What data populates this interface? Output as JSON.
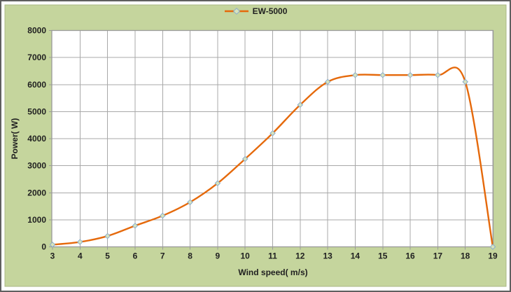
{
  "chart_data": {
    "type": "line",
    "title": "",
    "x": [
      3,
      4,
      5,
      6,
      7,
      8,
      9,
      10,
      11,
      12,
      13,
      14,
      15,
      16,
      17,
      18,
      19
    ],
    "series": [
      {
        "name": "EW-5000",
        "values": [
          80,
          180,
          400,
          780,
          1150,
          1650,
          2350,
          3250,
          4200,
          5250,
          6100,
          6350,
          6350,
          6350,
          6350,
          6100,
          0
        ]
      }
    ],
    "xlabel": "Wind speed( m/s)",
    "ylabel": "Power( W)",
    "x_ticks": [
      3,
      4,
      5,
      6,
      7,
      8,
      9,
      10,
      11,
      12,
      13,
      14,
      15,
      16,
      17,
      18,
      19
    ],
    "y_ticks": [
      0,
      1000,
      2000,
      3000,
      4000,
      5000,
      6000,
      7000,
      8000
    ],
    "ylim": [
      0,
      8000
    ],
    "grid": true,
    "legend_position": "top-center",
    "line_style": "smooth",
    "marker": "diamond"
  },
  "colors": {
    "chart_background": "#c5d59d",
    "chart_border": "#aab886",
    "plot_background": "#ffffff",
    "gridline": "#a8a8a8",
    "plot_border": "#9a9a9a",
    "series_line": "#e5690b",
    "marker_fill": "#d8e4bc",
    "marker_stroke": "#8aaccd",
    "text": "#212121",
    "outer_border": "#5f5f5f"
  }
}
